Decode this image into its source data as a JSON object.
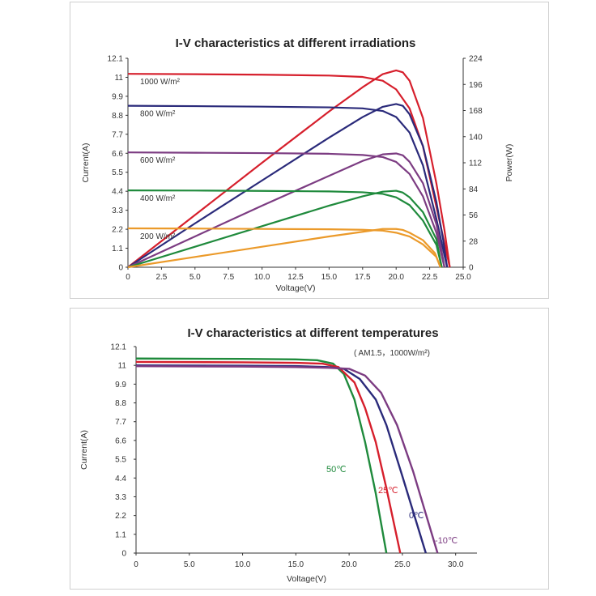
{
  "chart_data": [
    {
      "type": "line",
      "title": "I-V characteristics at different irradiations",
      "xlabel": "Voltage(V)",
      "ylabel": "Current(A)",
      "y2label": "Power(W)",
      "xlim": [
        0,
        25
      ],
      "ylim": [
        0,
        12.1
      ],
      "y2lim": [
        0,
        224
      ],
      "x_ticks": [
        "0",
        "2.5",
        "5.0",
        "7.5",
        "10.0",
        "12.5",
        "15.0",
        "17.5",
        "20.0",
        "22.5",
        "25.0"
      ],
      "y_ticks": [
        "0",
        "1.1",
        "2.2",
        "3.3",
        "4.4",
        "5.5",
        "6.6",
        "7.7",
        "8.8",
        "9.9",
        "11",
        "12.1"
      ],
      "y2_ticks": [
        "0",
        "28",
        "56",
        "84",
        "112",
        "140",
        "168",
        "196",
        "224"
      ],
      "grid": false,
      "series": [
        {
          "name": "1000 W/m²",
          "color": "#d61f2c",
          "iv": [
            [
              0,
              11.2
            ],
            [
              5,
              11.18
            ],
            [
              10,
              11.15
            ],
            [
              15,
              11.1
            ],
            [
              17.5,
              11.02
            ],
            [
              19,
              10.8
            ],
            [
              20,
              10.3
            ],
            [
              21,
              9.2
            ],
            [
              22,
              7.0
            ],
            [
              23,
              3.5
            ],
            [
              24,
              0
            ]
          ],
          "pv": [
            [
              0,
              0
            ],
            [
              5,
              56
            ],
            [
              10,
              112
            ],
            [
              15,
              167
            ],
            [
              17.5,
              193
            ],
            [
              19,
              207
            ],
            [
              20,
              211
            ],
            [
              20.5,
              209
            ],
            [
              21,
              200
            ],
            [
              22,
              160
            ],
            [
              23,
              90
            ],
            [
              23.6,
              40
            ],
            [
              24,
              0
            ]
          ]
        },
        {
          "name": "800 W/m²",
          "color": "#2a2a7a",
          "iv": [
            [
              0,
              9.35
            ],
            [
              5,
              9.33
            ],
            [
              10,
              9.3
            ],
            [
              15,
              9.26
            ],
            [
              17.5,
              9.2
            ],
            [
              19,
              9.05
            ],
            [
              20,
              8.7
            ],
            [
              21,
              7.8
            ],
            [
              22,
              5.9
            ],
            [
              23,
              2.8
            ],
            [
              23.8,
              0
            ]
          ],
          "pv": [
            [
              0,
              0
            ],
            [
              5,
              47
            ],
            [
              10,
              93
            ],
            [
              15,
              139
            ],
            [
              17.5,
              161
            ],
            [
              19,
              172
            ],
            [
              20,
              175
            ],
            [
              20.5,
              173
            ],
            [
              21,
              164
            ],
            [
              22,
              130
            ],
            [
              23,
              70
            ],
            [
              23.5,
              30
            ],
            [
              23.8,
              0
            ]
          ]
        },
        {
          "name": "600 W/m²",
          "color": "#7c3c82",
          "iv": [
            [
              0,
              6.65
            ],
            [
              5,
              6.63
            ],
            [
              10,
              6.61
            ],
            [
              15,
              6.57
            ],
            [
              17.5,
              6.5
            ],
            [
              19,
              6.38
            ],
            [
              20,
              6.1
            ],
            [
              21,
              5.4
            ],
            [
              22,
              4.1
            ],
            [
              23,
              2.0
            ],
            [
              23.6,
              0
            ]
          ],
          "pv": [
            [
              0,
              0
            ],
            [
              5,
              33
            ],
            [
              10,
              66
            ],
            [
              15,
              98
            ],
            [
              17.5,
              114
            ],
            [
              19,
              121
            ],
            [
              20,
              122
            ],
            [
              20.5,
              120
            ],
            [
              21,
              113
            ],
            [
              22,
              90
            ],
            [
              23,
              46
            ],
            [
              23.3,
              25
            ],
            [
              23.6,
              0
            ]
          ]
        },
        {
          "name": "400 W/m²",
          "color": "#1f8a3c",
          "iv": [
            [
              0,
              4.45
            ],
            [
              5,
              4.44
            ],
            [
              10,
              4.42
            ],
            [
              15,
              4.39
            ],
            [
              17.5,
              4.34
            ],
            [
              19,
              4.25
            ],
            [
              20,
              4.05
            ],
            [
              21,
              3.6
            ],
            [
              22,
              2.7
            ],
            [
              23,
              1.3
            ],
            [
              23.4,
              0
            ]
          ],
          "pv": [
            [
              0,
              0
            ],
            [
              5,
              22
            ],
            [
              10,
              44
            ],
            [
              15,
              66
            ],
            [
              17.5,
              76
            ],
            [
              19,
              81
            ],
            [
              20,
              82
            ],
            [
              20.5,
              80
            ],
            [
              21,
              75
            ],
            [
              22,
              59
            ],
            [
              23,
              30
            ],
            [
              23.4,
              0
            ]
          ]
        },
        {
          "name": "200 W/m²",
          "color": "#eb9a2a",
          "iv": [
            [
              0,
              2.25
            ],
            [
              5,
              2.24
            ],
            [
              10,
              2.22
            ],
            [
              15,
              2.2
            ],
            [
              17.5,
              2.17
            ],
            [
              19,
              2.12
            ],
            [
              20,
              2.0
            ],
            [
              21,
              1.78
            ],
            [
              22,
              1.32
            ],
            [
              23,
              0.6
            ],
            [
              23.3,
              0
            ]
          ],
          "pv": [
            [
              0,
              0
            ],
            [
              5,
              11
            ],
            [
              10,
              22
            ],
            [
              15,
              33
            ],
            [
              17.5,
              38
            ],
            [
              19,
              41
            ],
            [
              20,
              41
            ],
            [
              20.5,
              40
            ],
            [
              21,
              37
            ],
            [
              22,
              29
            ],
            [
              22.9,
              15
            ],
            [
              23.3,
              0
            ]
          ]
        }
      ],
      "annotations": [
        "1000 W/m²",
        "800 W/m²",
        "600 W/m²",
        "400 W/m²",
        "200 W/m²"
      ]
    },
    {
      "type": "line",
      "title": "I-V characteristics at different temperatures",
      "subtitle": "( AM1.5，1000W/m²)",
      "xlabel": "Voltage(V)",
      "ylabel": "Current(A)",
      "xlim": [
        0,
        32
      ],
      "ylim": [
        0,
        12.1
      ],
      "x_ticks": [
        "0",
        "5.0",
        "10.0",
        "15.0",
        "20.0",
        "25.0",
        "30.0"
      ],
      "x_tick_values": [
        0,
        5,
        10,
        15,
        20,
        25,
        30
      ],
      "y_ticks": [
        "0",
        "1.1",
        "2.2",
        "3.3",
        "4.4",
        "5.5",
        "6.6",
        "7.7",
        "8.8",
        "9.9",
        "11",
        "12.1"
      ],
      "grid": false,
      "series": [
        {
          "name": "50℃",
          "color": "#1f8a3c",
          "iv": [
            [
              0,
              11.4
            ],
            [
              10,
              11.38
            ],
            [
              15,
              11.35
            ],
            [
              17,
              11.3
            ],
            [
              18.5,
              11.1
            ],
            [
              19.5,
              10.5
            ],
            [
              20.5,
              9.0
            ],
            [
              21.5,
              6.5
            ],
            [
              22.5,
              3.5
            ],
            [
              23.5,
              0
            ]
          ]
        },
        {
          "name": "25℃",
          "color": "#d61f2c",
          "iv": [
            [
              0,
              11.2
            ],
            [
              10,
              11.18
            ],
            [
              15,
              11.15
            ],
            [
              17.5,
              11.1
            ],
            [
              19,
              10.9
            ],
            [
              20.5,
              10.0
            ],
            [
              21.5,
              8.5
            ],
            [
              22.5,
              6.5
            ],
            [
              23.5,
              3.8
            ],
            [
              24.8,
              0
            ]
          ]
        },
        {
          "name": "0℃",
          "color": "#2a2a7a",
          "iv": [
            [
              0,
              11.0
            ],
            [
              10,
              10.98
            ],
            [
              15,
              10.96
            ],
            [
              18,
              10.9
            ],
            [
              19.5,
              10.8
            ],
            [
              21,
              10.2
            ],
            [
              22.5,
              9.0
            ],
            [
              23.5,
              7.5
            ],
            [
              25,
              4.5
            ],
            [
              27.2,
              0
            ]
          ]
        },
        {
          "name": "-10℃",
          "color": "#7c3c82",
          "iv": [
            [
              0,
              10.95
            ],
            [
              10,
              10.93
            ],
            [
              15,
              10.9
            ],
            [
              18,
              10.86
            ],
            [
              20,
              10.8
            ],
            [
              21.5,
              10.4
            ],
            [
              23,
              9.4
            ],
            [
              24.5,
              7.5
            ],
            [
              26,
              4.8
            ],
            [
              28.3,
              0
            ]
          ]
        }
      ]
    }
  ]
}
